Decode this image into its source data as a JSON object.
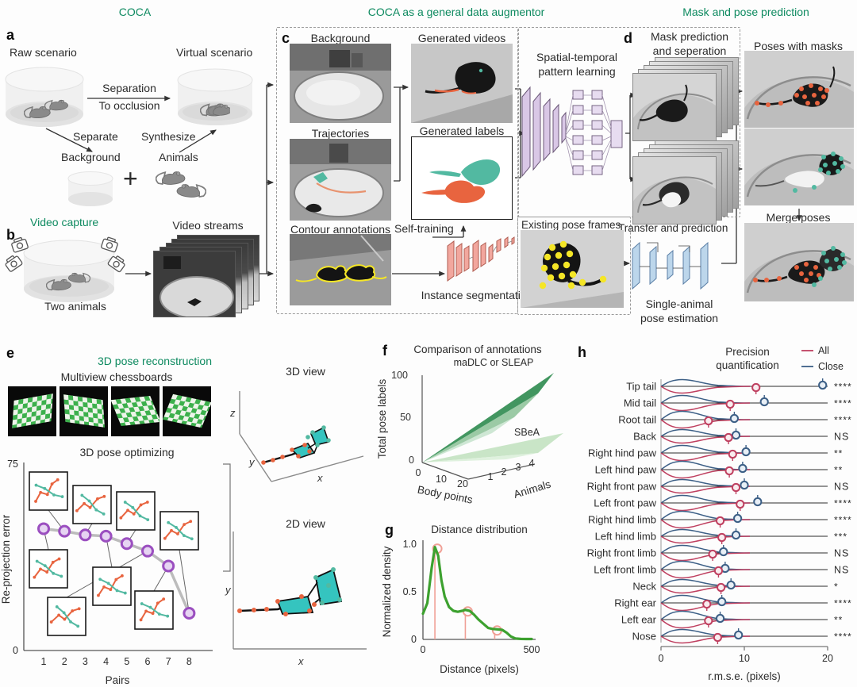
{
  "colors": {
    "accent_green": "#0e8a60",
    "teal": "#52b9a1",
    "orange": "#e8643f",
    "purple": "#9b4fc0",
    "purple_fill": "#e6d4f2",
    "violin_red": "#bf4060",
    "violin_blue": "#3c5f86",
    "curve_green": "#3da12f",
    "peak_pink": "#f0a096",
    "net_pink": "#f2a79e",
    "net_lavender": "#d9c7e6",
    "net_blue": "#bcd6eb",
    "annotation_yellow": "#f5e626",
    "gray_line": "#bcbcbc"
  },
  "headers": {
    "coca": "COCA",
    "augmentor": "COCA as a general data augmentor",
    "mask_pose": "Mask and pose prediction"
  },
  "panel_a": {
    "letter": "a",
    "raw_scenario": "Raw scenario",
    "virtual_scenario": "Virtual scenario",
    "separation": "Separation",
    "to_occlusion": "To occlusion",
    "separate": "Separate",
    "background": "Background",
    "synthesize": "Synthesize",
    "animals": "Animals",
    "plus": "+"
  },
  "panel_b": {
    "letter": "b",
    "video_capture": "Video capture",
    "two_animals": "Two animals",
    "video_streams": "Video streams"
  },
  "panel_c": {
    "letter": "c",
    "background": "Background",
    "generated_videos": "Generated videos",
    "trajectories": "Trajectories",
    "generated_labels": "Generated labels",
    "contour_annotations": "Contour annotations",
    "self_training": "Self-training",
    "instance_segmentation": "Instance segmentation",
    "spatial_temporal_1": "Spatial-temporal",
    "spatial_temporal_2": "pattern learning"
  },
  "panel_d": {
    "letter": "d",
    "title_1": "Mask prediction",
    "title_2": "and seperation",
    "poses_with_masks": "Poses with masks",
    "existing_pose_frames": "Existing pose frames",
    "transfer_and_prediction": "Transfer and prediction",
    "single_animal_1": "Single-animal",
    "single_animal_2": "pose estimation",
    "merge_poses": "Merge poses"
  },
  "panel_e": {
    "letter": "e",
    "title": "3D pose reconstruction",
    "multiview": "Multiview chessboards",
    "view_3d": "3D view",
    "view_2d": "2D view",
    "axis_x": "x",
    "axis_y": "y",
    "axis_z": "z"
  },
  "panel_f": {
    "letter": "f"
  },
  "panel_g": {
    "letter": "g"
  },
  "panel_h": {
    "letter": "h"
  },
  "chart_data": [
    {
      "id": "reprojection",
      "type": "scatter",
      "title": "3D pose optimizing",
      "xlabel": "Pairs",
      "ylabel": "Re-projection error",
      "ylim": [
        0,
        75
      ],
      "yticks": [
        0,
        75
      ],
      "categories": [
        1,
        2,
        3,
        4,
        5,
        6,
        7,
        8
      ],
      "values": [
        49,
        48,
        46.5,
        46,
        43,
        40,
        34,
        15
      ]
    },
    {
      "id": "annotations",
      "type": "area",
      "title": "Comparison of annotations",
      "zlabel": "Total pose labels",
      "z_ticks": [
        "100",
        "50",
        "0"
      ],
      "xlabel": "Body points",
      "x_ticks": [
        "0",
        "10",
        "20"
      ],
      "ylabel": "Animals",
      "y_ticks": [
        "1",
        "2",
        "3",
        "4"
      ],
      "series": [
        {
          "name": "maDLC or SLEAP",
          "description": "steep dark-green surface, grows fast with animals and body points"
        },
        {
          "name": "SBeA",
          "description": "shallow light-green surface, stays low"
        }
      ]
    },
    {
      "id": "distance",
      "type": "line",
      "title": "Distance distribution",
      "xlabel": "Distance (pixels)",
      "ylabel": "Normalized density",
      "xlim": [
        0,
        500
      ],
      "ylim": [
        0,
        1.0
      ],
      "xticks": [
        "0",
        "500"
      ],
      "yticks": [
        "0",
        "0.5",
        "1.0"
      ],
      "x": [
        0,
        20,
        40,
        55,
        70,
        85,
        100,
        120,
        140,
        160,
        180,
        195,
        215,
        235,
        255,
        280,
        300,
        320,
        345,
        365,
        385,
        405,
        425,
        450,
        475,
        500
      ],
      "y": [
        0.27,
        0.38,
        0.75,
        0.97,
        0.88,
        0.62,
        0.45,
        0.34,
        0.3,
        0.29,
        0.3,
        0.31,
        0.3,
        0.26,
        0.21,
        0.16,
        0.12,
        0.11,
        0.105,
        0.1,
        0.07,
        0.03,
        0.01,
        0.005,
        0.004,
        0.004
      ],
      "peaks": [
        [
          55,
          0.97
        ],
        [
          195,
          0.31
        ],
        [
          330,
          0.11
        ]
      ]
    },
    {
      "id": "precision",
      "type": "violin",
      "title_1": "Precision",
      "title_2": "quantification",
      "xlabel": "r.m.s.e. (pixels)",
      "xlim": [
        0,
        20
      ],
      "xticks": [
        "0",
        "10",
        "20"
      ],
      "legend": [
        {
          "name": "All",
          "color": "#bf4060"
        },
        {
          "name": "Close",
          "color": "#3c5f86"
        }
      ],
      "rows": [
        {
          "label": "Tip tail",
          "all": 11.4,
          "close": 19.4,
          "sig": "****"
        },
        {
          "label": "Mid tail",
          "all": 8.3,
          "close": 12.4,
          "sig": "****"
        },
        {
          "label": "Root tail",
          "all": 5.7,
          "close": 8.8,
          "sig": "****"
        },
        {
          "label": "Back",
          "all": 8.1,
          "close": 9.0,
          "sig": "NS"
        },
        {
          "label": "Right hind paw",
          "all": 8.6,
          "close": 10.2,
          "sig": "**"
        },
        {
          "label": "Left hind paw",
          "all": 8.2,
          "close": 9.8,
          "sig": "**"
        },
        {
          "label": "Right front paw",
          "all": 9.0,
          "close": 10.0,
          "sig": "NS"
        },
        {
          "label": "Left front paw",
          "all": 9.5,
          "close": 11.6,
          "sig": "****"
        },
        {
          "label": "Right hind limb",
          "all": 7.1,
          "close": 9.2,
          "sig": "****"
        },
        {
          "label": "Left hind limb",
          "all": 7.3,
          "close": 9.0,
          "sig": "***"
        },
        {
          "label": "Right front limb",
          "all": 6.2,
          "close": 7.5,
          "sig": "NS"
        },
        {
          "label": "Left front limb",
          "all": 6.9,
          "close": 7.7,
          "sig": "NS"
        },
        {
          "label": "Neck",
          "all": 7.2,
          "close": 8.4,
          "sig": "*"
        },
        {
          "label": "Right ear",
          "all": 5.5,
          "close": 7.3,
          "sig": "****"
        },
        {
          "label": "Left ear",
          "all": 5.7,
          "close": 7.1,
          "sig": "**"
        },
        {
          "label": "Nose",
          "all": 6.8,
          "close": 9.3,
          "sig": "****"
        }
      ]
    }
  ]
}
